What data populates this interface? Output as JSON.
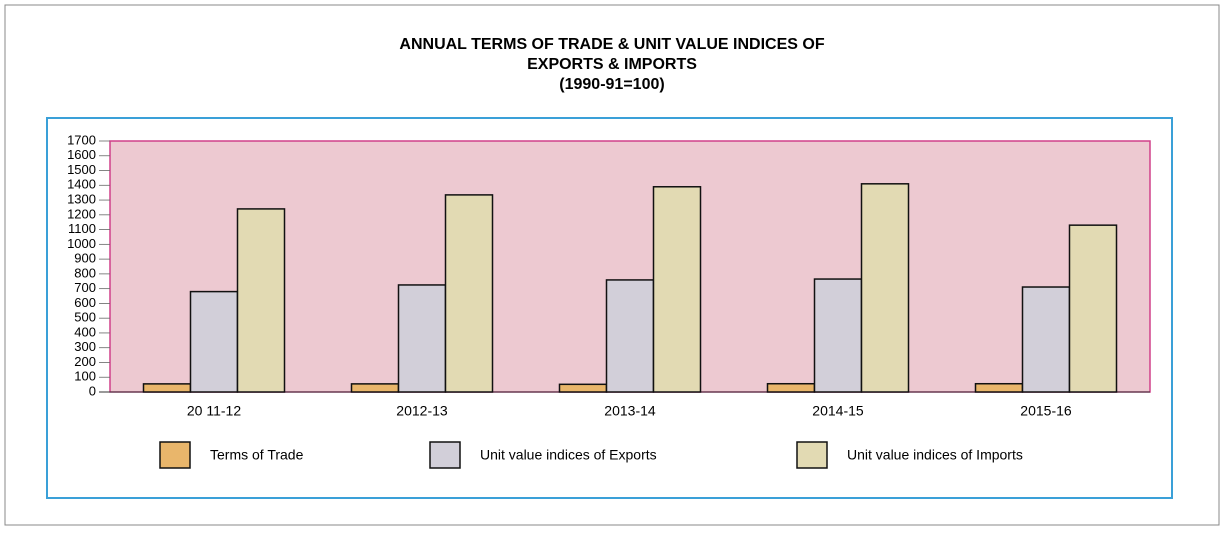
{
  "chart_data": {
    "type": "bar",
    "title": [
      "ANNUAL TERMS OF TRADE & UNIT VALUE INDICES OF",
      "EXPORTS & IMPORTS",
      "(1990-91=100)"
    ],
    "categories": [
      "20 11-12",
      "2012-13",
      "2013-14",
      "2014-15",
      "2015-16"
    ],
    "series": [
      {
        "name": "Terms of Trade",
        "color": "#e9b66b",
        "values": [
          55,
          55,
          52,
          56,
          56
        ]
      },
      {
        "name": "Unit value indices of Exports",
        "color": "#d2cfd9",
        "values": [
          680,
          725,
          759,
          765,
          711
        ]
      },
      {
        "name": "Unit value indices of Imports",
        "color": "#e2dab3",
        "values": [
          1240,
          1335,
          1390,
          1410,
          1130
        ]
      }
    ],
    "ylim": [
      0,
      1700
    ],
    "yticks": [
      0,
      100,
      200,
      300,
      400,
      500,
      600,
      700,
      800,
      900,
      1000,
      1100,
      1200,
      1300,
      1400,
      1500,
      1600,
      1700
    ],
    "plot_background": "#edc9d1"
  }
}
